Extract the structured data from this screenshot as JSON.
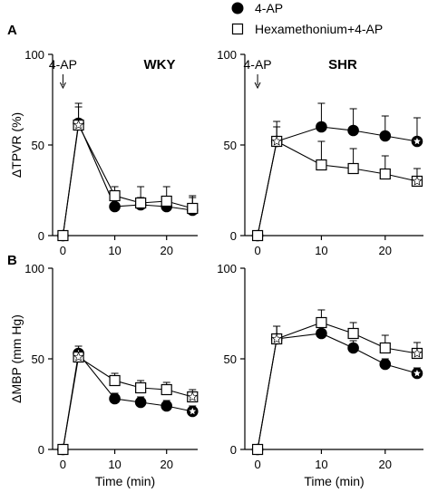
{
  "legend": [
    {
      "name": "4-AP",
      "marker": "filled-circle",
      "color": "#000000"
    },
    {
      "name": "Hexamethonium+4-AP",
      "marker": "open-square",
      "color": "#000000"
    }
  ],
  "significance_marker": "asterisk",
  "chart_data": [
    {
      "type": "line",
      "panel": "A",
      "group": "WKY",
      "ylabel": "ΔTPVR (%)",
      "xlabel": "",
      "ylim": [
        0,
        100
      ],
      "yticks": [
        0,
        50,
        100
      ],
      "xlim": [
        -2,
        26
      ],
      "xticks": [
        0,
        10,
        20
      ],
      "annotation": {
        "text": "4-AP",
        "x": 0
      },
      "series": [
        {
          "name": "4-AP",
          "marker": "filled-circle",
          "x": [
            0,
            3,
            10,
            15,
            20,
            25
          ],
          "y": [
            0,
            62,
            16,
            17,
            16,
            14
          ],
          "err": [
            0,
            11,
            2,
            4,
            3,
            8
          ],
          "asterisk": [
            false,
            true,
            false,
            false,
            false,
            true
          ]
        },
        {
          "name": "Hexamethonium+4-AP",
          "marker": "open-square",
          "x": [
            0,
            3,
            10,
            15,
            20,
            25
          ],
          "y": [
            0,
            61,
            22,
            18,
            19,
            15
          ],
          "err": [
            0,
            10,
            5,
            9,
            8,
            6
          ],
          "asterisk": [
            false,
            true,
            false,
            false,
            false,
            false
          ]
        }
      ]
    },
    {
      "type": "line",
      "panel": "",
      "group": "SHR",
      "ylabel": "",
      "xlabel": "",
      "ylim": [
        0,
        100
      ],
      "yticks": [
        0,
        50,
        100
      ],
      "xlim": [
        -2,
        26
      ],
      "xticks": [
        0,
        10,
        20
      ],
      "annotation": {
        "text": "4-AP",
        "x": 0
      },
      "series": [
        {
          "name": "4-AP",
          "marker": "filled-circle",
          "x": [
            0,
            3,
            10,
            15,
            20,
            25
          ],
          "y": [
            0,
            52,
            60,
            58,
            55,
            52
          ],
          "err": [
            0,
            8,
            13,
            12,
            11,
            13
          ],
          "asterisk": [
            false,
            true,
            false,
            false,
            false,
            true
          ]
        },
        {
          "name": "Hexamethonium+4-AP",
          "marker": "open-square",
          "x": [
            0,
            3,
            10,
            15,
            20,
            25
          ],
          "y": [
            0,
            52,
            39,
            37,
            34,
            30
          ],
          "err": [
            0,
            11,
            13,
            11,
            10,
            7
          ],
          "asterisk": [
            false,
            true,
            false,
            false,
            false,
            true
          ]
        }
      ]
    },
    {
      "type": "line",
      "panel": "B",
      "group": "",
      "ylabel": "ΔMBP (mm Hg)",
      "xlabel": "Time (min)",
      "ylim": [
        0,
        100
      ],
      "yticks": [
        0,
        50,
        100
      ],
      "xlim": [
        -2,
        26
      ],
      "xticks": [
        0,
        10,
        20
      ],
      "annotation": null,
      "series": [
        {
          "name": "4-AP",
          "marker": "filled-circle",
          "x": [
            0,
            3,
            10,
            15,
            20,
            25
          ],
          "y": [
            0,
            53,
            28,
            26,
            24,
            21
          ],
          "err": [
            0,
            4,
            3,
            3,
            3,
            3
          ],
          "asterisk": [
            false,
            true,
            false,
            false,
            false,
            true
          ]
        },
        {
          "name": "Hexamethonium+4-AP",
          "marker": "open-square",
          "x": [
            0,
            3,
            10,
            15,
            20,
            25
          ],
          "y": [
            0,
            51,
            38,
            34,
            33,
            29
          ],
          "err": [
            0,
            4,
            4,
            4,
            4,
            4
          ],
          "asterisk": [
            false,
            true,
            false,
            false,
            false,
            true
          ]
        }
      ]
    },
    {
      "type": "line",
      "panel": "",
      "group": "",
      "ylabel": "",
      "xlabel": "Time (min)",
      "ylim": [
        0,
        100
      ],
      "yticks": [
        0,
        50,
        100
      ],
      "xlim": [
        -2,
        26
      ],
      "xticks": [
        0,
        10,
        20
      ],
      "annotation": null,
      "series": [
        {
          "name": "4-AP",
          "marker": "filled-circle",
          "x": [
            0,
            3,
            10,
            15,
            20,
            25
          ],
          "y": [
            0,
            61,
            64,
            56,
            47,
            42
          ],
          "err": [
            0,
            7,
            6,
            4,
            3,
            3
          ],
          "asterisk": [
            false,
            true,
            false,
            false,
            false,
            true
          ]
        },
        {
          "name": "Hexamethonium+4-AP",
          "marker": "open-square",
          "x": [
            0,
            3,
            10,
            15,
            20,
            25
          ],
          "y": [
            0,
            61,
            70,
            64,
            56,
            53
          ],
          "err": [
            0,
            7,
            7,
            6,
            7,
            6
          ],
          "asterisk": [
            false,
            true,
            false,
            false,
            false,
            true
          ]
        }
      ]
    }
  ]
}
